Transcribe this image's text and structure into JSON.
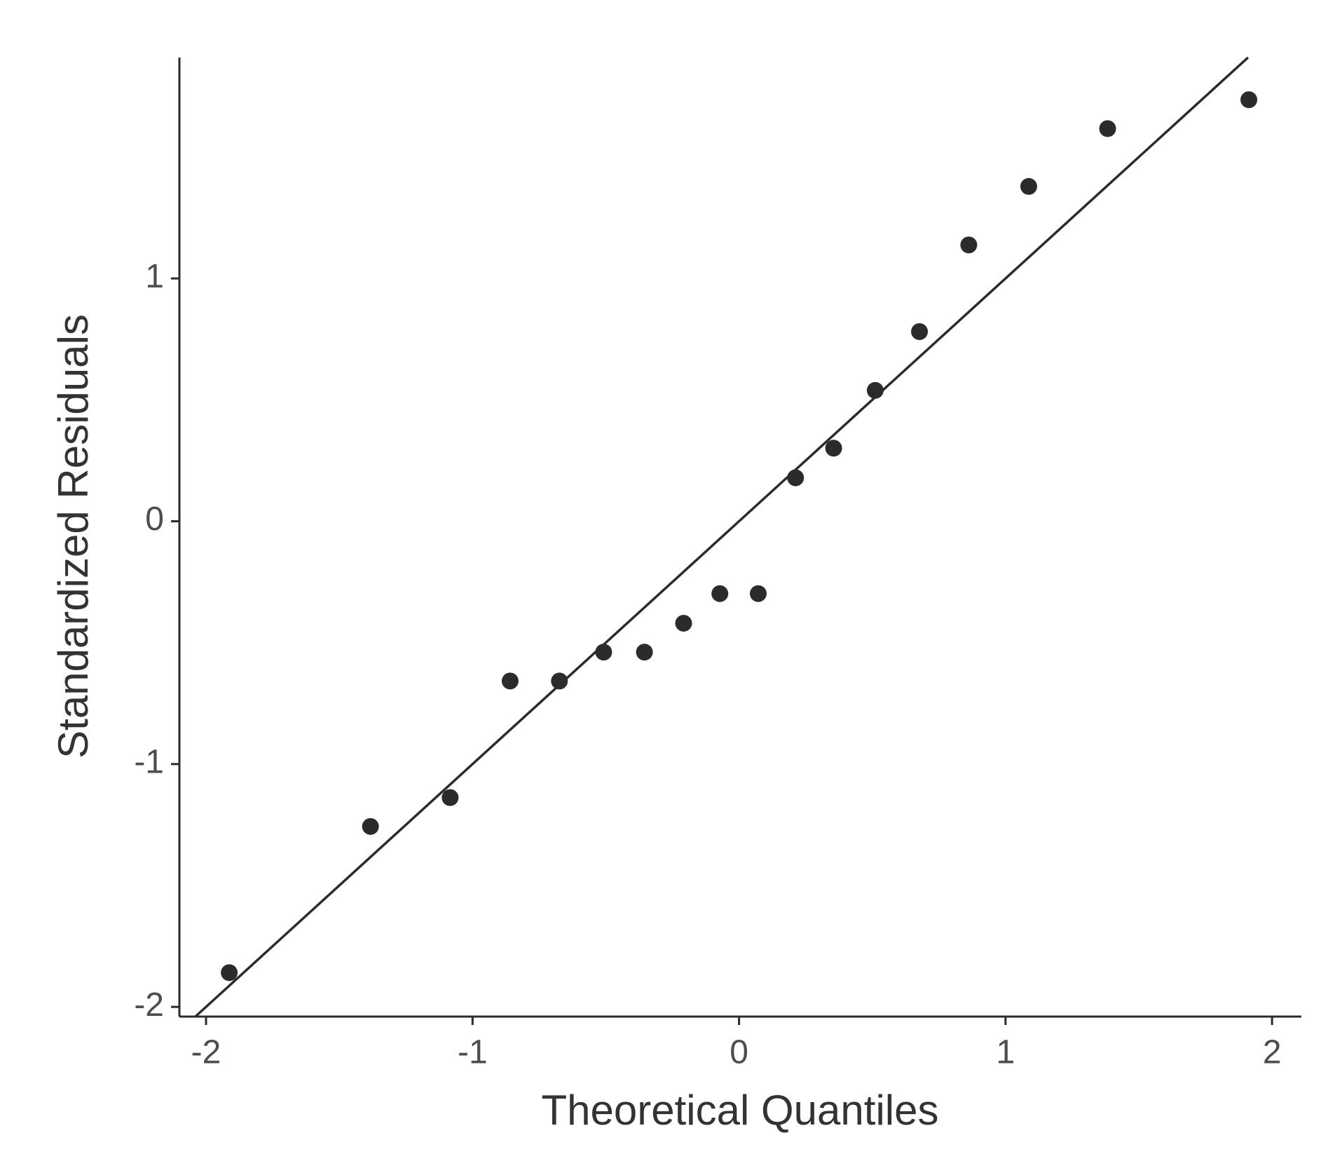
{
  "chart_data": {
    "type": "scatter",
    "x_label": "Theoretical Quantiles",
    "y_label": "Standardized Residuals",
    "x": [
      -1.913,
      -1.383,
      -1.084,
      -0.859,
      -0.674,
      -0.508,
      -0.355,
      -0.208,
      -0.072,
      0.072,
      0.212,
      0.355,
      0.511,
      0.677,
      0.862,
      1.087,
      1.383,
      1.913
    ],
    "values": [
      -1.859,
      -1.257,
      -1.138,
      -0.658,
      -0.658,
      -0.539,
      -0.539,
      -0.42,
      -0.298,
      -0.298,
      0.179,
      0.301,
      0.539,
      0.781,
      1.138,
      1.379,
      1.617,
      1.736
    ],
    "color": "#2b2b2b",
    "reference_line": {
      "slope": 1,
      "intercept": 0,
      "color": "#2b2b2b"
    },
    "xlim": [
      -2.1,
      2.11
    ],
    "ylim": [
      -2.04,
      1.91
    ],
    "xticks": [
      -2,
      -1,
      0,
      1,
      2
    ],
    "yticks": [
      -2,
      -1,
      0,
      1
    ],
    "grid": false
  }
}
